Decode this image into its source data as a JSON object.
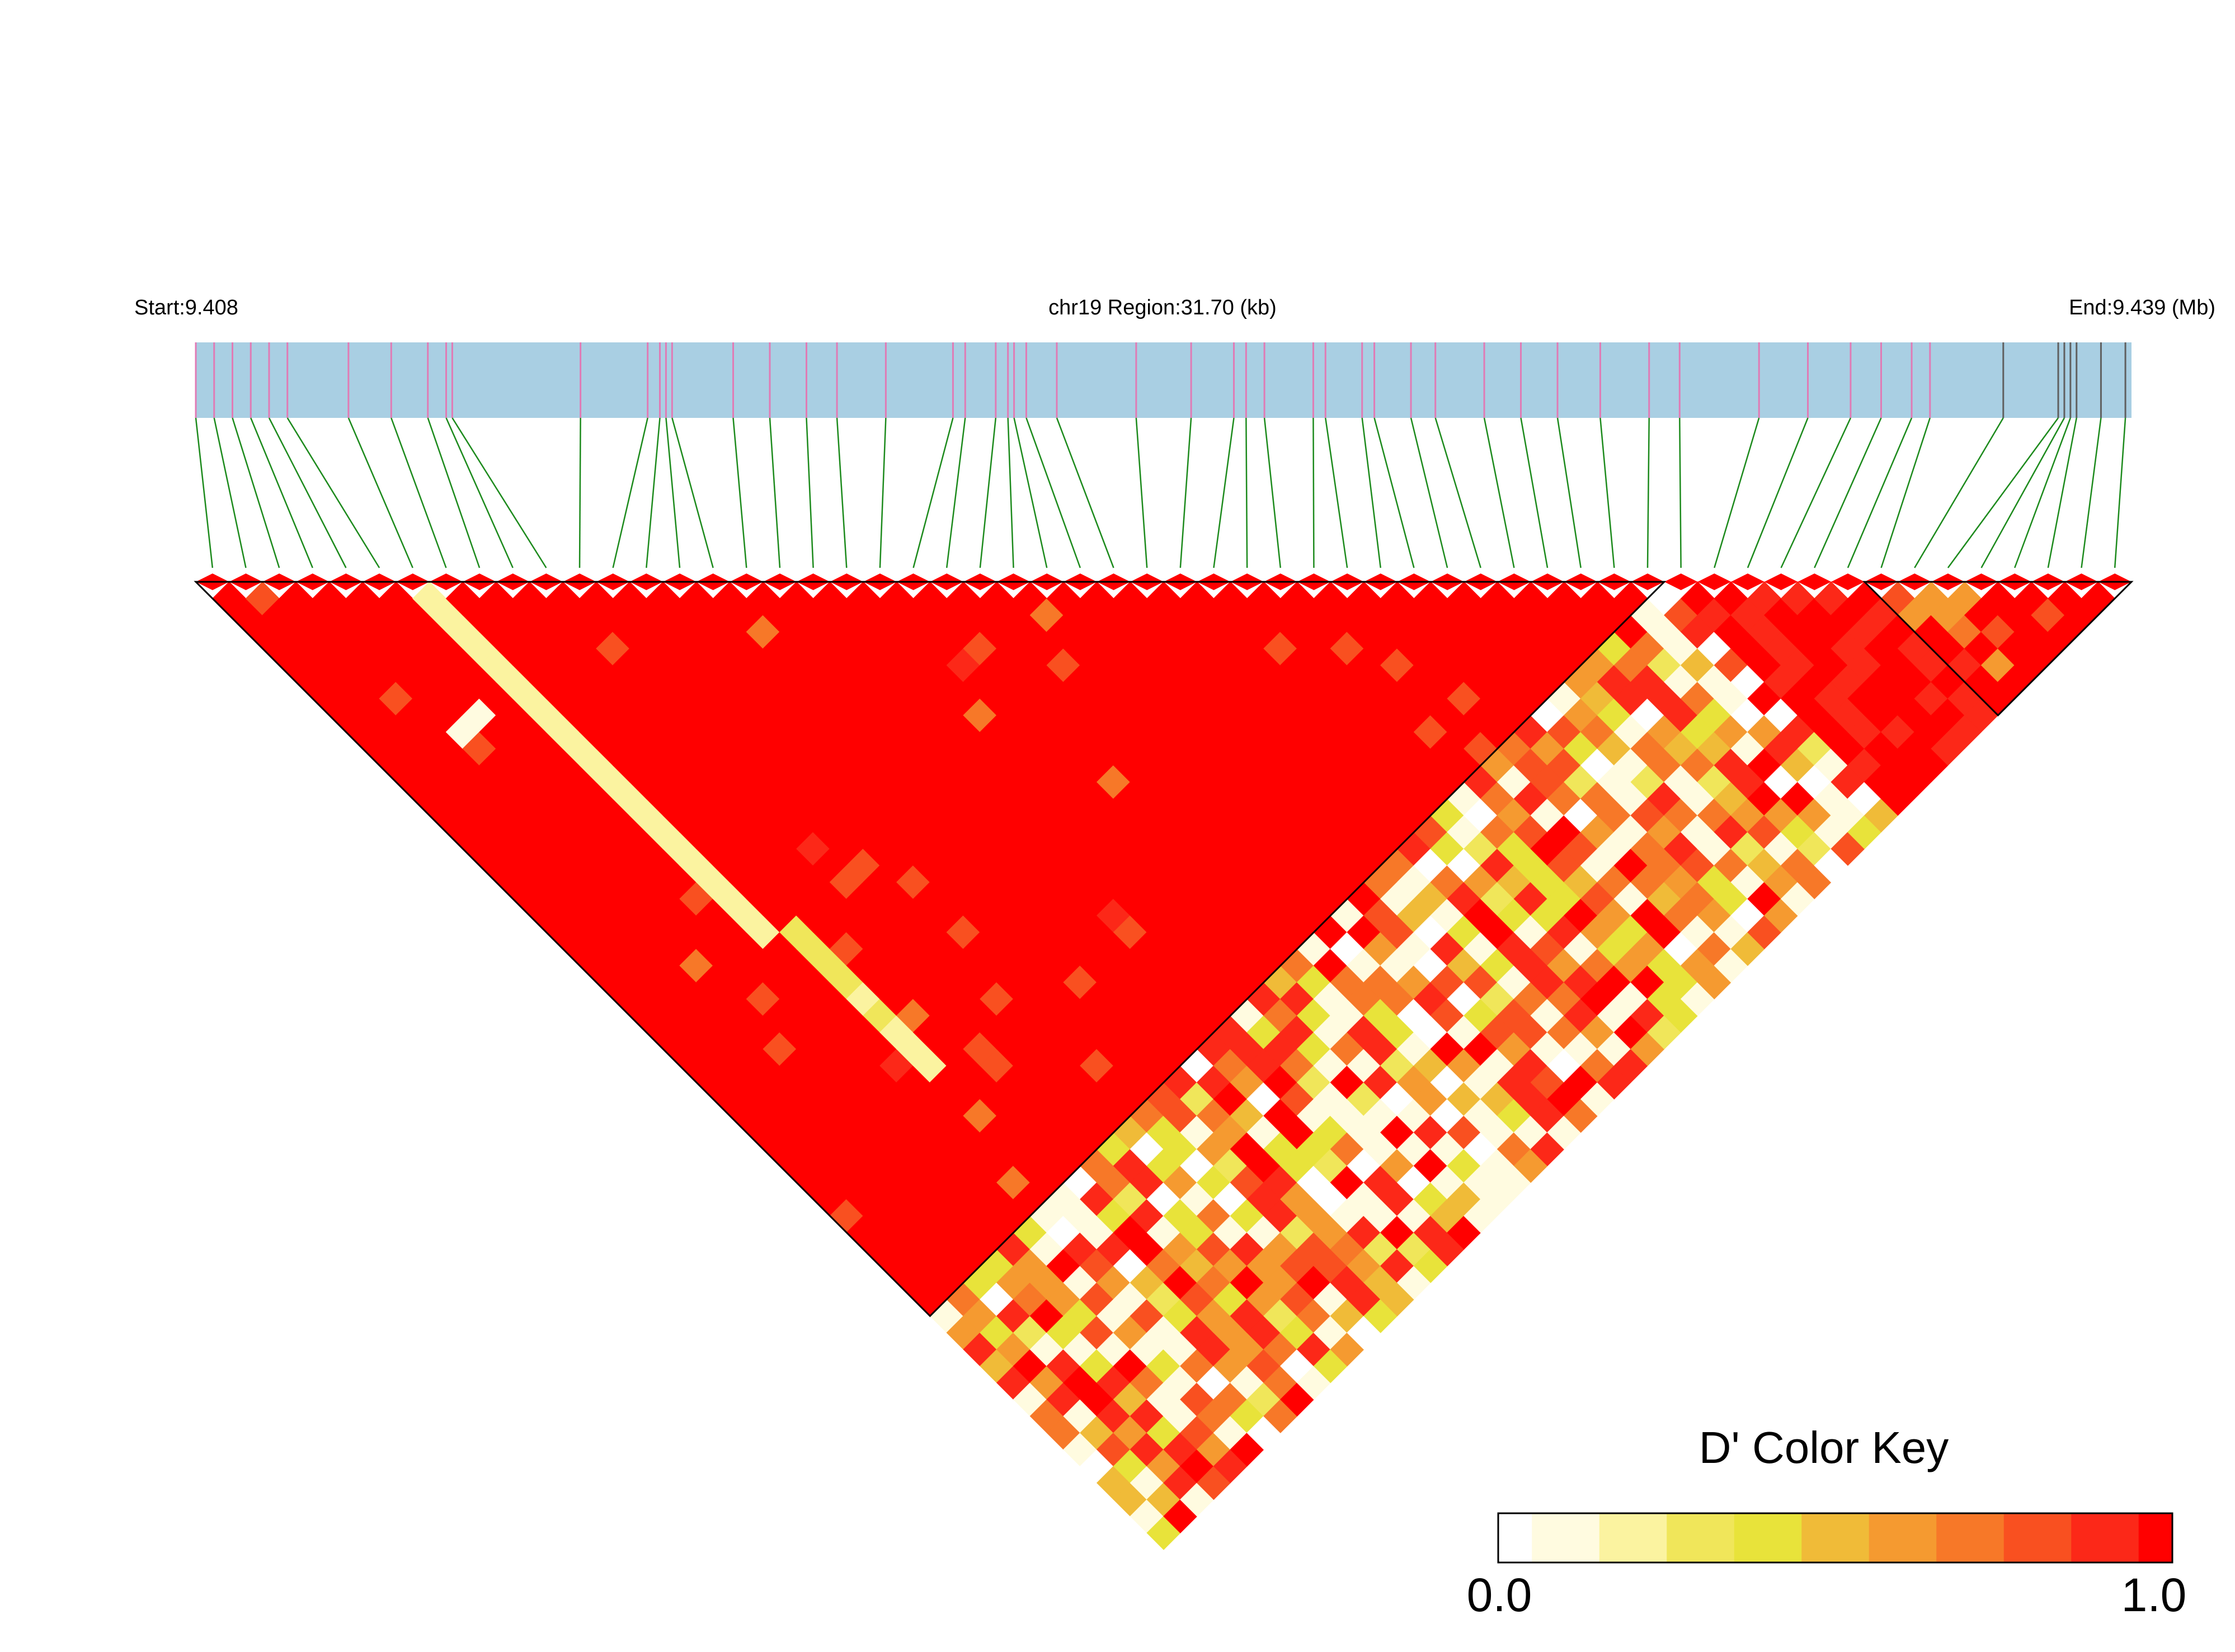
{
  "chart_data": {
    "type": "heatmap",
    "subtype": "linkage-disequilibrium",
    "header": {
      "start_label": "Start:9.408",
      "region_label": "chr19 Region:31.70 (kb)",
      "end_label": "End:9.439 (Mb)"
    },
    "region": {
      "start_mb": 9.408,
      "end_mb": 9.439,
      "chromosome": "chr19",
      "length_kb": 31.7
    },
    "snp_count": 58,
    "snp_positions_kb": [
      0.0,
      0.3,
      0.6,
      0.9,
      1.2,
      1.5,
      2.5,
      3.2,
      3.8,
      4.1,
      4.2,
      6.3,
      7.4,
      7.6,
      7.7,
      7.8,
      8.8,
      9.4,
      10.0,
      10.5,
      11.3,
      12.4,
      12.6,
      13.1,
      13.3,
      13.4,
      13.6,
      14.1,
      15.4,
      16.3,
      17.0,
      17.2,
      17.5,
      18.3,
      18.5,
      19.1,
      19.3,
      19.9,
      20.3,
      21.1,
      21.7,
      22.3,
      23.0,
      23.8,
      24.3,
      25.6,
      26.4,
      27.1,
      27.6,
      28.1,
      28.4,
      29.6,
      30.5,
      30.6,
      30.7,
      30.8,
      31.2,
      31.6
    ],
    "color_key": {
      "title": "D' Color Key",
      "min_label": "0.0",
      "max_label": "1.0",
      "colors": [
        "#ffffff",
        "#fffbe0",
        "#fbf3a0",
        "#f0e65a",
        "#e8e33a",
        "#f0bb38",
        "#f59a30",
        "#f77828",
        "#f95020",
        "#fc2818",
        "#ff0000"
      ]
    },
    "ld_blocks": [
      {
        "snp_from": 1,
        "snp_to": 44
      },
      {
        "snp_from": 51,
        "snp_to": 58
      }
    ],
    "colors": {
      "gene_track": "#a9cfe3",
      "snp_marker": "#e07bb5",
      "snp_marker_dark": "#606060",
      "connector": "#1c8a1c",
      "high_ld": "#ff0000"
    }
  }
}
